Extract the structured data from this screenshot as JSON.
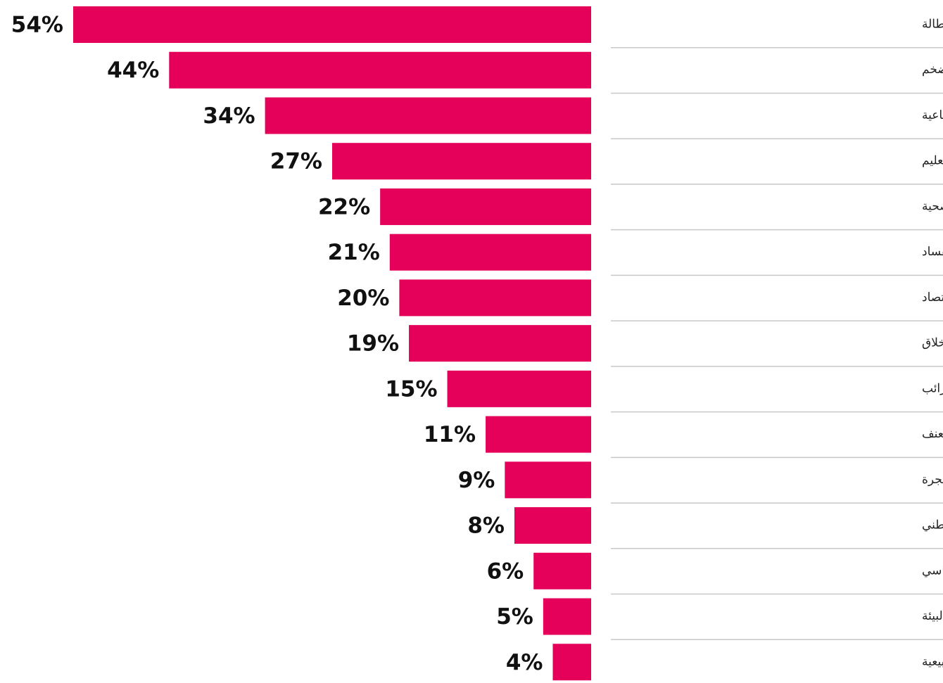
{
  "chart_data": {
    "type": "bar",
    "orientation": "horizontal",
    "direction": "leftward",
    "color": "#e5005a",
    "categories": [
      "البطالة",
      "ارتفاع تكلفة المعيشة /التضخم",
      "الفقر وعدم المساواة الاجتماعية",
      "التعليم",
      "الرعاية الصحية",
      "الفساد",
      "ضعف الاقتصاد",
      "تدني الاخلاق",
      "الضرائب",
      "الجريمة والعنف",
      "الهجرة",
      "الامن الوطني",
      "عدم الاستقرار السياسي",
      "البيئة",
      "نقص في الموارد الطبيعية"
    ],
    "values": [
      54,
      44,
      34,
      27,
      22,
      21,
      20,
      19,
      15,
      11,
      9,
      8,
      6,
      5,
      4
    ],
    "value_labels": [
      "54%",
      "44%",
      "34%",
      "27%",
      "22%",
      "21%",
      "20%",
      "19%",
      "15%",
      "11%",
      "9%",
      "8%",
      "6%",
      "5%",
      "4%"
    ]
  }
}
